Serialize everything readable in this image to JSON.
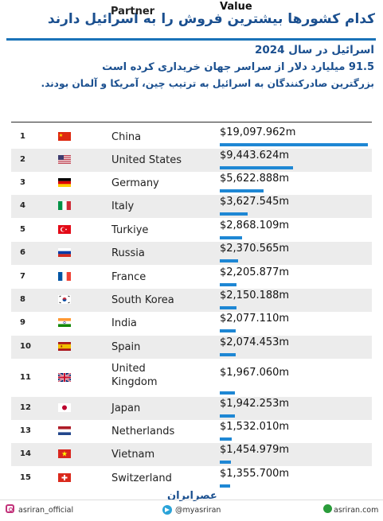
{
  "title": "کدام کشورها بیشترین فروش را به اسرائیل دارند",
  "intro": [
    "اسرائیل در سال 2024",
    "91.5 میلیارد دلار از سراسر جهان خریداری کرده است",
    "بزرگترین صادرکنندگان به اسرائیل به ترتیب چین، آمریکا و آلمان بودند."
  ],
  "table": {
    "headers": {
      "partner": "Partner",
      "value": "Value"
    },
    "rows": [
      {
        "rank": "1",
        "flag": "china-flag-icon",
        "partner": "China",
        "value": "$19,097.962m"
      },
      {
        "rank": "2",
        "flag": "united-states-flag-icon",
        "partner": "United States",
        "value": "$9,443.624m"
      },
      {
        "rank": "3",
        "flag": "germany-flag-icon",
        "partner": "Germany",
        "value": "$5,622.888m"
      },
      {
        "rank": "4",
        "flag": "italy-flag-icon",
        "partner": "Italy",
        "value": "$3,627.545m"
      },
      {
        "rank": "5",
        "flag": "turkiye-flag-icon",
        "partner": "Turkiye",
        "value": "$2,868.109m"
      },
      {
        "rank": "6",
        "flag": "russia-flag-icon",
        "partner": "Russia",
        "value": "$2,370.565m"
      },
      {
        "rank": "7",
        "flag": "france-flag-icon",
        "partner": "France",
        "value": "$2,205.877m"
      },
      {
        "rank": "8",
        "flag": "south-korea-flag-icon",
        "partner": "South Korea",
        "value": "$2,150.188m"
      },
      {
        "rank": "9",
        "flag": "india-flag-icon",
        "partner": "India",
        "value": "$2,077.110m"
      },
      {
        "rank": "10",
        "flag": "spain-flag-icon",
        "partner": "Spain",
        "value": "$2,074.453m"
      },
      {
        "rank": "11",
        "flag": "united-kingdom-flag-icon",
        "partner": "United\nKingdom",
        "value": "$1,967.060m"
      },
      {
        "rank": "12",
        "flag": "japan-flag-icon",
        "partner": "Japan",
        "value": "$1,942.253m"
      },
      {
        "rank": "13",
        "flag": "netherlands-flag-icon",
        "partner": "Netherlands",
        "value": "$1,532.010m"
      },
      {
        "rank": "14",
        "flag": "vietnam-flag-icon",
        "partner": "Vietnam",
        "value": "$1,454.979m"
      },
      {
        "rank": "15",
        "flag": "switzerland-flag-icon",
        "partner": "Switzerland",
        "value": "$1,355.700m"
      }
    ]
  },
  "chart_data": {
    "type": "bar",
    "categories": [
      "China",
      "United States",
      "Germany",
      "Italy",
      "Turkiye",
      "Russia",
      "France",
      "South Korea",
      "India",
      "Spain",
      "United Kingdom",
      "Japan",
      "Netherlands",
      "Vietnam",
      "Switzerland"
    ],
    "values": [
      19097.962,
      9443.624,
      5622.888,
      3627.545,
      2868.109,
      2370.565,
      2205.877,
      2150.188,
      2077.11,
      2074.453,
      1967.06,
      1942.253,
      1532.01,
      1454.979,
      1355.7
    ]
  },
  "colors": {
    "title": "#1a4f8f",
    "bar": "#1e87d4",
    "row_alt": "#ececec"
  },
  "footer": {
    "instagram": "asriran_official",
    "telegram": "@myasriran",
    "website": "asriran.com",
    "logo": "عصرایران"
  }
}
